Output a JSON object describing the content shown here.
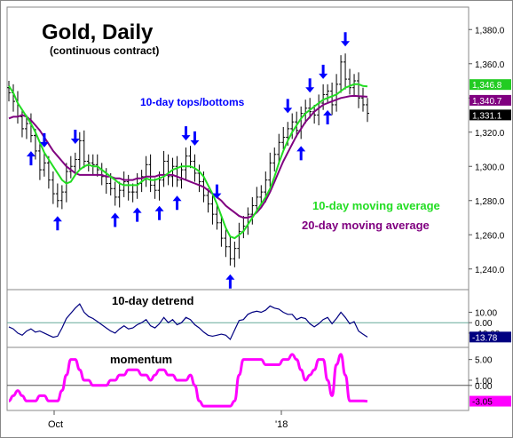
{
  "chart_data": {
    "type": "bar",
    "title": "Gold, Daily",
    "subtitle": "(continuous contract)",
    "annotations": {
      "tops_bottoms": "10-day tops/bottoms",
      "ma10": "10-day moving average",
      "ma20": "20-day moving average"
    },
    "x_tick_labels": [
      "Oct",
      "'18"
    ],
    "colors": {
      "price_bars": "#000000",
      "ma10": "#22dd22",
      "ma20": "#800080",
      "arrows": "#0000ff",
      "detrend": "#000080",
      "momentum": "#ff00ff",
      "border": "#888888"
    },
    "panels": [
      {
        "id": "price",
        "ylim": [
          1230,
          1390
        ],
        "ticks": [
          "1,380.0",
          "1,360.0",
          "1,340.0",
          "1,320.0",
          "1,300.0",
          "1,280.0",
          "1,260.0",
          "1,240.0"
        ],
        "tick_values": [
          1380,
          1360,
          1340,
          1320,
          1300,
          1280,
          1260,
          1240
        ],
        "badges": [
          {
            "text": "1,346.8",
            "value": 1346.8,
            "bg": "#22cc22",
            "fg": "#ffffff"
          },
          {
            "text": "1,340.7",
            "value": 1340.7,
            "bg": "#800080",
            "fg": "#ffffff"
          },
          {
            "text": "1,331.1",
            "value": 1331.1,
            "bg": "#000000",
            "fg": "#ffffff"
          }
        ],
        "series": {
          "close": [
            1343,
            1338,
            1329,
            1322,
            1325,
            1318,
            1309,
            1298,
            1302,
            1292,
            1284,
            1280,
            1285,
            1297,
            1300,
            1304,
            1315,
            1303,
            1302,
            1301,
            1298,
            1294,
            1290,
            1287,
            1282,
            1286,
            1291,
            1285,
            1285,
            1290,
            1294,
            1301,
            1289,
            1286,
            1292,
            1303,
            1294,
            1300,
            1292,
            1298,
            1306,
            1303,
            1296,
            1291,
            1283,
            1278,
            1272,
            1267,
            1258,
            1253,
            1246,
            1252,
            1262,
            1265,
            1272,
            1277,
            1282,
            1285,
            1292,
            1302,
            1307,
            1314,
            1317,
            1322,
            1326,
            1321,
            1331,
            1334,
            1332,
            1330,
            1337,
            1342,
            1344,
            1336,
            1348,
            1361,
            1351,
            1346,
            1350,
            1340,
            1336,
            1331
          ],
          "ma10": [
            1347,
            1343,
            1337,
            1333,
            1329,
            1325,
            1320,
            1314,
            1308,
            1304,
            1300,
            1296,
            1292,
            1290,
            1291,
            1295,
            1298,
            1300,
            1301,
            1300,
            1300,
            1298,
            1296,
            1294,
            1292,
            1290,
            1289,
            1289,
            1289,
            1289,
            1291,
            1293,
            1292,
            1292,
            1293,
            1294,
            1296,
            1298,
            1299,
            1300,
            1300,
            1300,
            1299,
            1297,
            1294,
            1289,
            1284,
            1278,
            1271,
            1264,
            1259,
            1258,
            1260,
            1262,
            1266,
            1270,
            1274,
            1278,
            1282,
            1287,
            1294,
            1302,
            1309,
            1315,
            1320,
            1324,
            1328,
            1331,
            1333,
            1335,
            1337,
            1339,
            1340,
            1341,
            1342,
            1344,
            1346,
            1347,
            1348,
            1348,
            1347,
            1346.8
          ],
          "ma20": [
            1328,
            1329,
            1329,
            1330,
            1329,
            1327,
            1324,
            1321,
            1317,
            1313,
            1309,
            1306,
            1303,
            1300,
            1298,
            1296,
            1295,
            1295,
            1295,
            1295,
            1295,
            1295,
            1294,
            1294,
            1293,
            1293,
            1292,
            1292,
            1292,
            1293,
            1293,
            1294,
            1294,
            1294,
            1295,
            1295,
            1295,
            1295,
            1294,
            1293,
            1292,
            1291,
            1290,
            1289,
            1288,
            1286,
            1284,
            1282,
            1280,
            1277,
            1275,
            1273,
            1271,
            1270,
            1270,
            1271,
            1273,
            1276,
            1280,
            1285,
            1291,
            1297,
            1303,
            1308,
            1313,
            1318,
            1322,
            1326,
            1329,
            1332,
            1334,
            1336,
            1337,
            1338,
            1339,
            1340,
            1340.5,
            1341,
            1341.2,
            1341,
            1340.9,
            1340.7
          ]
        }
      },
      {
        "id": "detrend",
        "label": "10-day detrend",
        "ylim": [
          -22,
          30
        ],
        "ticks": [
          "10.00",
          "0.00",
          "-10.00"
        ],
        "tick_values": [
          10,
          0,
          -10
        ],
        "badges": [
          {
            "text": "-13.78",
            "value": -13.78,
            "bg": "#000080",
            "fg": "#ffffff"
          }
        ],
        "series": {
          "detrend": [
            -4,
            -6,
            -10,
            -12,
            -8,
            -6,
            -9,
            -8,
            -10,
            -12,
            -14,
            -13,
            -5,
            4,
            9,
            14,
            18,
            10,
            6,
            4,
            1,
            -2,
            -5,
            -8,
            -10,
            -6,
            -3,
            -6,
            -5,
            -2,
            0,
            3,
            -3,
            -5,
            -1,
            5,
            0,
            3,
            -2,
            0,
            5,
            3,
            -2,
            -5,
            -9,
            -12,
            -13,
            -12,
            -11,
            -12,
            -16,
            -7,
            2,
            3,
            8,
            10,
            11,
            10,
            12,
            16,
            14,
            13,
            10,
            8,
            8,
            3,
            5,
            4,
            -1,
            -4,
            -1,
            3,
            5,
            -1,
            4,
            10,
            5,
            -1,
            1,
            -8,
            -11,
            -13.78
          ]
        }
      },
      {
        "id": "momentum",
        "label": "momentum",
        "ylim": [
          -4.5,
          7
        ],
        "ticks": [
          "5.00",
          "1.00",
          "0.00",
          "-3.05"
        ],
        "tick_values": [
          5,
          1,
          0,
          -3.05
        ],
        "badges": [
          {
            "text": "-3.05",
            "value": -3.05,
            "bg": "#ff00ff",
            "fg": "#000000"
          }
        ],
        "series": {
          "momentum": [
            -3,
            -2,
            -1,
            -2,
            -3,
            -3,
            -3,
            -2,
            -2,
            -3,
            -3,
            -3,
            -1,
            2,
            5,
            5,
            3,
            1,
            1,
            0,
            0,
            0,
            0,
            1,
            1,
            2,
            2,
            3,
            3,
            3,
            2,
            2,
            1,
            2,
            3,
            3,
            2,
            2,
            1,
            1,
            1,
            2,
            0,
            -3,
            -4,
            -4,
            -4,
            -4,
            -4,
            -4,
            -4,
            -3,
            2,
            5,
            5,
            5,
            5,
            5,
            4,
            4,
            4,
            4,
            5,
            5,
            6,
            5,
            3,
            1,
            2,
            3,
            5,
            5,
            1,
            -2,
            4,
            6,
            2,
            -3,
            -3,
            -3,
            -3,
            -3.05
          ]
        }
      }
    ]
  }
}
